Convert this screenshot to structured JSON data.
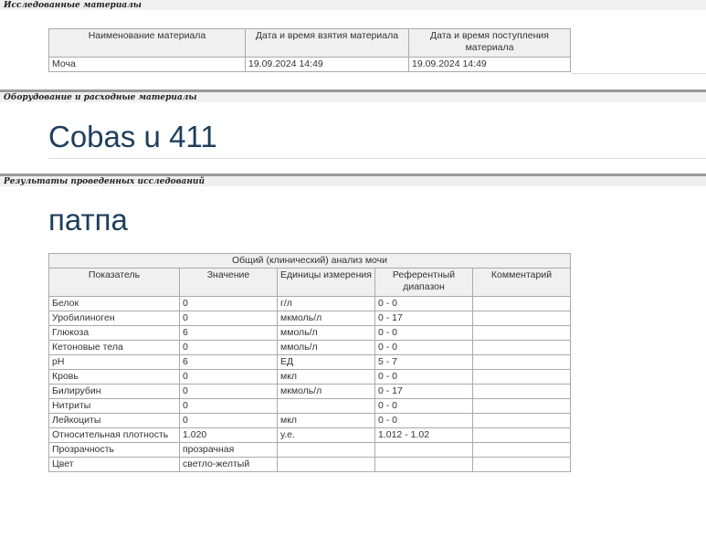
{
  "sections": {
    "materials": "Исследованные материалы",
    "equipment": "Оборудование и расходные материалы",
    "results": "Результаты проведенных исследований"
  },
  "materials_table": {
    "headers": [
      "Наименование материала",
      "Дата и время взятия материала",
      "Дата и время поступления материала"
    ],
    "rows": [
      [
        "Моча",
        "19.09.2024 14:49",
        "19.09.2024 14:49"
      ]
    ]
  },
  "equipment_name": "Cobas u 411",
  "results_title": "патпа",
  "analysis_table": {
    "title": "Общий (клинический) анализ мочи",
    "headers": [
      "Показатель",
      "Значение",
      "Единицы измерения",
      "Референтный диапазон",
      "Комментарий"
    ],
    "rows": [
      [
        "Белок",
        "0",
        "г/л",
        "0 - 0",
        ""
      ],
      [
        "Уробилиноген",
        "0",
        "мкмоль/л",
        "0 - 17",
        ""
      ],
      [
        "Глюкоза",
        "6",
        "ммоль/л",
        "0 - 0",
        ""
      ],
      [
        "Кетоновые тела",
        "0",
        "ммоль/л",
        "0 - 0",
        ""
      ],
      [
        "pH",
        "6",
        "ЕД",
        "5 - 7",
        ""
      ],
      [
        "Кровь",
        "0",
        "мкл",
        "0 - 0",
        ""
      ],
      [
        "Билирубин",
        "0",
        "мкмоль/л",
        "0 - 17",
        ""
      ],
      [
        "Нитриты",
        "0",
        "",
        "0 - 0",
        ""
      ],
      [
        "Лейкоциты",
        "0",
        "мкл",
        "0 - 0",
        ""
      ],
      [
        "Относительная плотность",
        "1.020",
        "у.е.",
        "1.012 - 1.02",
        ""
      ],
      [
        "Прозрачность",
        "прозрачная",
        "",
        "",
        ""
      ],
      [
        "Цвет",
        "светло-желтый",
        "",
        "",
        ""
      ]
    ]
  }
}
